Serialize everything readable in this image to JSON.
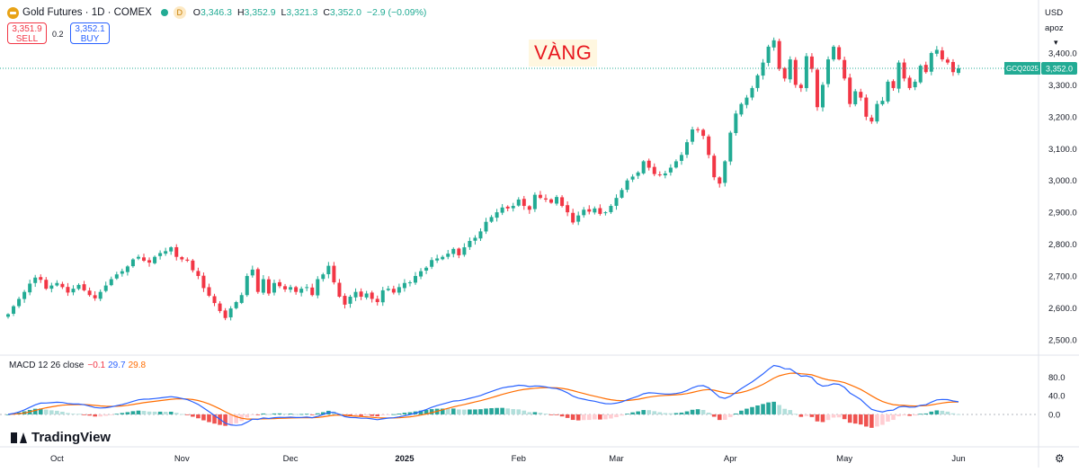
{
  "header": {
    "title": "Gold Futures · 1D · COMEX",
    "badge": "D",
    "ohlc": {
      "o_label": "O",
      "o": "3,346.3",
      "h_label": "H",
      "h": "3,352.9",
      "l_label": "L",
      "l": "3,321.3",
      "c_label": "C",
      "c": "3,352.0",
      "change": "−2.9 (−0.09%)"
    },
    "sell_price": "3,351.9",
    "sell_label": "SELL",
    "spread": "0.2",
    "buy_price": "3,352.1",
    "buy_label": "BUY"
  },
  "overlay_text": "VÀNG",
  "axis_panel": {
    "currency": "USD",
    "scale_label": "apoz",
    "settings_icon": "chevron-down-icon"
  },
  "price_tag": {
    "symbol": "GCQ2025",
    "value": "3,352.0"
  },
  "brand": "TradingView",
  "colors": {
    "up": "#22ab94",
    "down": "#f23645",
    "macd": "#2962ff",
    "signal": "#ff6d00",
    "hist_up_strong": "#26a69a",
    "hist_up_weak": "#b2dfdb",
    "hist_down_strong": "#ef5350",
    "hist_down_weak": "#ffcdd2"
  },
  "macd_legend": {
    "label": "MACD 12 26 close",
    "hist": "−0.1",
    "macd": "29.7",
    "signal": "29.8"
  },
  "chart_data": [
    {
      "type": "candlestick",
      "price_ticks": [
        2500,
        2600,
        2700,
        2800,
        2900,
        3000,
        3100,
        3200,
        3300,
        3400
      ],
      "price_tick_labels": [
        "2,500.0",
        "2,600.0",
        "2,700.0",
        "2,800.0",
        "2,900.0",
        "3,000.0",
        "3,100.0",
        "3,200.0",
        "3,300.0",
        "3,400.0"
      ],
      "ylim": [
        2460,
        3510
      ],
      "last_price": 3352.0,
      "time_labels": [
        {
          "label": "Oct",
          "index": 9
        },
        {
          "label": "Nov",
          "index": 32
        },
        {
          "label": "Dec",
          "index": 52
        },
        {
          "label": "2025",
          "index": 73
        },
        {
          "label": "Feb",
          "index": 94
        },
        {
          "label": "Mar",
          "index": 112
        },
        {
          "label": "Apr",
          "index": 133
        },
        {
          "label": "May",
          "index": 154
        },
        {
          "label": "Jun",
          "index": 175
        }
      ],
      "closes": [
        2580,
        2605,
        2628,
        2650,
        2676,
        2695,
        2688,
        2660,
        2670,
        2678,
        2665,
        2648,
        2660,
        2672,
        2655,
        2640,
        2630,
        2650,
        2670,
        2690,
        2705,
        2715,
        2730,
        2752,
        2760,
        2748,
        2742,
        2760,
        2772,
        2778,
        2790,
        2760,
        2752,
        2748,
        2718,
        2700,
        2662,
        2638,
        2615,
        2590,
        2568,
        2598,
        2618,
        2640,
        2700,
        2720,
        2650,
        2690,
        2645,
        2678,
        2668,
        2658,
        2665,
        2650,
        2660,
        2665,
        2640,
        2690,
        2705,
        2732,
        2680,
        2635,
        2610,
        2635,
        2650,
        2635,
        2645,
        2628,
        2618,
        2655,
        2660,
        2648,
        2665,
        2678,
        2680,
        2700,
        2715,
        2726,
        2750,
        2755,
        2760,
        2770,
        2785,
        2765,
        2790,
        2810,
        2820,
        2840,
        2870,
        2885,
        2900,
        2915,
        2912,
        2920,
        2940,
        2920,
        2908,
        2955,
        2945,
        2940,
        2930,
        2948,
        2920,
        2900,
        2868,
        2890,
        2908,
        2902,
        2912,
        2895,
        2900,
        2920,
        2945,
        2970,
        3000,
        3012,
        3025,
        3060,
        3040,
        3020,
        3018,
        3022,
        3040,
        3060,
        3080,
        3120,
        3160,
        3160,
        3140,
        3080,
        3010,
        2990,
        3060,
        3150,
        3210,
        3240,
        3260,
        3290,
        3330,
        3370,
        3420,
        3440,
        3350,
        3320,
        3380,
        3300,
        3290,
        3390,
        3350,
        3230,
        3300,
        3380,
        3420,
        3380,
        3320,
        3240,
        3280,
        3260,
        3200,
        3185,
        3240,
        3250,
        3310,
        3290,
        3370,
        3320,
        3290,
        3310,
        3360,
        3340,
        3400,
        3410,
        3380,
        3370,
        3340,
        3352
      ],
      "macd_ticks": [
        0,
        40,
        80
      ],
      "macd_tick_labels": [
        "0.0",
        "40.0",
        "80.0"
      ],
      "macd_ylim": [
        -60,
        110
      ]
    }
  ]
}
